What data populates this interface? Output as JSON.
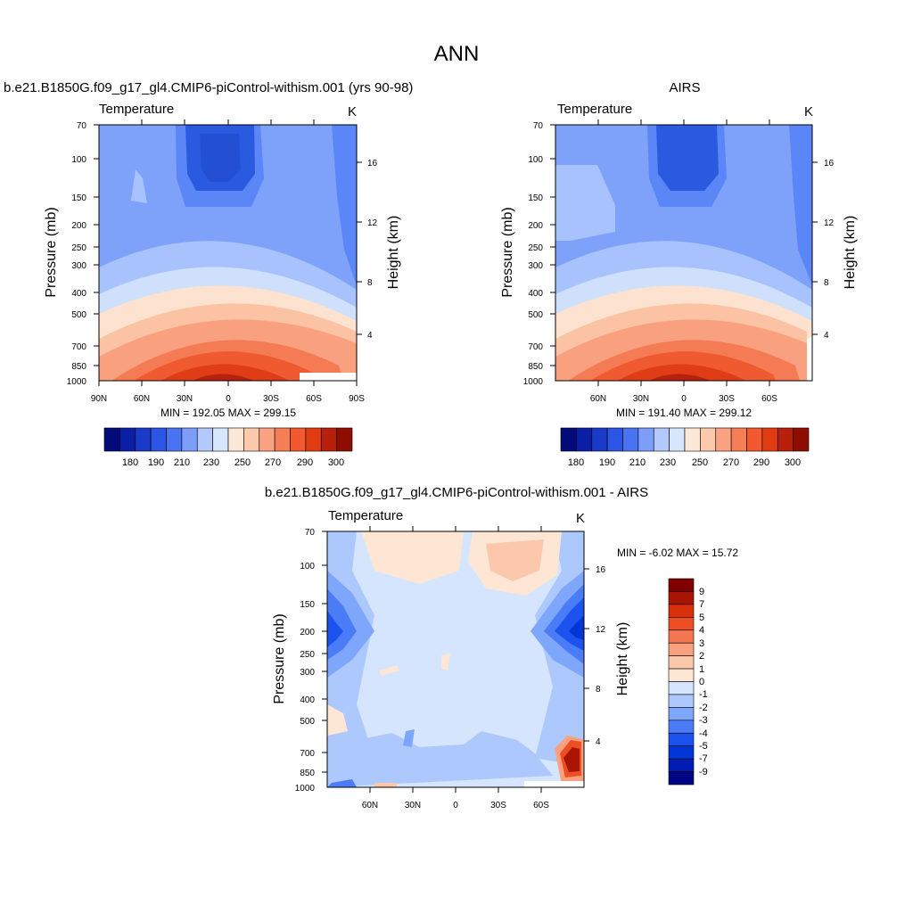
{
  "title": "ANN",
  "palette": {
    "blues": [
      "#1d3ba8",
      "#1f49c9",
      "#2a5ae0",
      "#3e6ef2",
      "#5a86f7",
      "#7ea2fa",
      "#a7c2fc",
      "#cfe0fd"
    ],
    "reds": [
      "#fde2cf",
      "#fcc2a4",
      "#f9a17f",
      "#f57b55",
      "#ef5a30",
      "#de3d16",
      "#b8210d",
      "#8d1208"
    ],
    "cb_full": [
      "#030a79",
      "#0b1fa6",
      "#1b3ac8",
      "#2c55e4",
      "#4a73f2",
      "#7c9ef8",
      "#b3c8fb",
      "#d8e6fd",
      "#fde7d6",
      "#fcc9ac",
      "#f9a281",
      "#f67e57",
      "#f2592f",
      "#e13b14",
      "#b8200b",
      "#8d0d03"
    ],
    "diff_cb": [
      "#000683",
      "#001cb2",
      "#0036d6",
      "#1c52ee",
      "#4a7cf7",
      "#7ea6fb",
      "#adc8fd",
      "#d5e5fe",
      "#fde6d4",
      "#fcc8ab",
      "#f9a07e",
      "#f47650",
      "#ee4e23",
      "#d82f0c",
      "#a91505",
      "#800000"
    ]
  },
  "panels": [
    {
      "id": "model",
      "header": "b.e21.B1850G.f09_g17_gl4.CMIP6-piControl-withism.001 (yrs 90-98)",
      "left_label": "Temperature",
      "right_label": "K",
      "y_title": "Pressure (mb)",
      "y2_title": "Height (km)",
      "pressure_ticks": [
        "70",
        "100",
        "150",
        "200",
        "250",
        "300",
        "400",
        "500",
        "700",
        "850",
        "1000"
      ],
      "height_ticks": [
        "16",
        "12",
        "8",
        "4"
      ],
      "lat_ticks": [
        "90N",
        "60N",
        "30N",
        "0",
        "30S",
        "60S",
        "90S"
      ],
      "stats": "MIN = 192.05  MAX = 299.15",
      "colorbar_labels": [
        "180",
        "190",
        "210",
        "230",
        "250",
        "270",
        "290",
        "300"
      ]
    },
    {
      "id": "obs",
      "header": "AIRS",
      "left_label": "Temperature",
      "right_label": "K",
      "y_title": "Pressure (mb)",
      "y2_title": "Height (km)",
      "pressure_ticks": [
        "70",
        "100",
        "150",
        "200",
        "250",
        "300",
        "400",
        "500",
        "700",
        "850",
        "1000"
      ],
      "height_ticks": [
        "16",
        "12",
        "8",
        "4"
      ],
      "lat_ticks": [
        "60N",
        "30N",
        "0",
        "30S",
        "60S"
      ],
      "stats": "MIN = 191.40  MAX = 299.12",
      "colorbar_labels": [
        "180",
        "190",
        "210",
        "230",
        "250",
        "270",
        "290",
        "300"
      ]
    },
    {
      "id": "diff",
      "header": "b.e21.B1850G.f09_g17_gl4.CMIP6-piControl-withism.001 - AIRS",
      "left_label": "Temperature",
      "right_label": "K",
      "y_title": "Pressure (mb)",
      "y2_title": "Height (km)",
      "pressure_ticks": [
        "70",
        "100",
        "150",
        "200",
        "250",
        "300",
        "400",
        "500",
        "700",
        "850",
        "1000"
      ],
      "height_ticks": [
        "16",
        "12",
        "8",
        "4"
      ],
      "lat_ticks": [
        "60N",
        "30N",
        "0",
        "30S",
        "60S"
      ],
      "stats": "MIN =  -6.02  MAX =  15.72",
      "colorbar_labels": [
        "9",
        "7",
        "5",
        "4",
        "3",
        "2",
        "1",
        "0",
        "-1",
        "-2",
        "-3",
        "-4",
        "-5",
        "-7",
        "-9"
      ]
    }
  ],
  "chart_data": [
    {
      "type": "heatmap",
      "title": "b.e21.B1850G.f09_g17_gl4.CMIP6-piControl-withism.001 (yrs 90-98)",
      "variable": "Temperature",
      "units": "K",
      "xlabel": "",
      "ylabel": "Pressure (mb)",
      "y2label": "Height (km)",
      "x_ticks": [
        "90N",
        "60N",
        "30N",
        "0",
        "30S",
        "60S",
        "90S"
      ],
      "y_ticks": [
        70,
        100,
        150,
        200,
        250,
        300,
        400,
        500,
        700,
        850,
        1000
      ],
      "y2_ticks": [
        16,
        12,
        8,
        4
      ],
      "ylim": [
        1000,
        70
      ],
      "contour_levels": [
        180,
        190,
        200,
        210,
        220,
        230,
        240,
        250,
        260,
        270,
        280,
        290,
        300
      ],
      "min": 192.05,
      "max": 299.15,
      "pattern": "warm tropical lower troposphere (~295-300 K near surface), coldest near 100 mb over the equator (~192 K)"
    },
    {
      "type": "heatmap",
      "title": "AIRS",
      "variable": "Temperature",
      "units": "K",
      "xlabel": "",
      "ylabel": "Pressure (mb)",
      "y2label": "Height (km)",
      "x_ticks": [
        "60N",
        "30N",
        "0",
        "30S",
        "60S"
      ],
      "y_ticks": [
        70,
        100,
        150,
        200,
        250,
        300,
        400,
        500,
        700,
        850,
        1000
      ],
      "y2_ticks": [
        16,
        12,
        8,
        4
      ],
      "ylim": [
        1000,
        70
      ],
      "contour_levels": [
        180,
        190,
        200,
        210,
        220,
        230,
        240,
        250,
        260,
        270,
        280,
        290,
        300
      ],
      "min": 191.4,
      "max": 299.12
    },
    {
      "type": "heatmap",
      "title": "b.e21.B1850G.f09_g17_gl4.CMIP6-piControl-withism.001 - AIRS",
      "variable": "Temperature",
      "units": "K",
      "xlabel": "",
      "ylabel": "Pressure (mb)",
      "y2label": "Height (km)",
      "x_ticks": [
        "60N",
        "30N",
        "0",
        "30S",
        "60S"
      ],
      "y_ticks": [
        70,
        100,
        150,
        200,
        250,
        300,
        400,
        500,
        700,
        850,
        1000
      ],
      "y2_ticks": [
        16,
        12,
        8,
        4
      ],
      "ylim": [
        1000,
        70
      ],
      "contour_levels": [
        -9,
        -7,
        -5,
        -4,
        -3,
        -2,
        -1,
        0,
        1,
        2,
        3,
        4,
        5,
        7,
        9
      ],
      "min": -6.02,
      "max": 15.72,
      "pattern": "mostly -1 to 0 K; cold bias ~-5 K near 200 mb at high latitudes; warm bias up to ~+10 K near 700-850 mb at 70-80S"
    }
  ]
}
